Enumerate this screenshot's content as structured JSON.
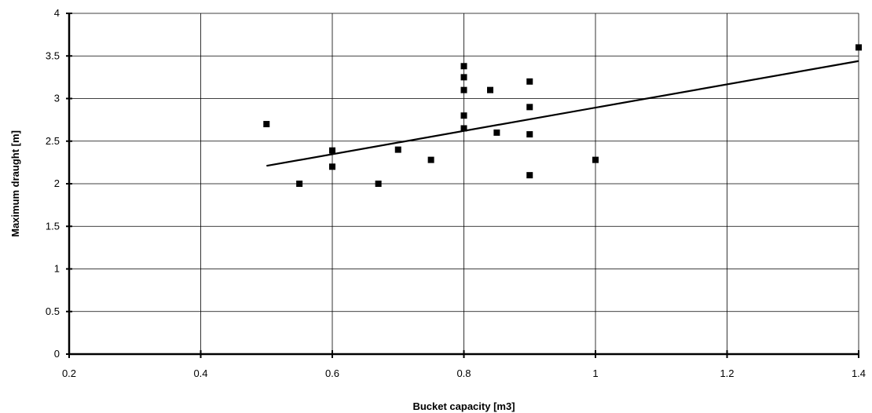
{
  "chart_data": {
    "type": "scatter",
    "title": "",
    "xlabel": "Bucket capacity [m3]",
    "ylabel": "Maximum draught [m]",
    "xlim": [
      0.2,
      1.4
    ],
    "ylim": [
      0,
      4
    ],
    "xticks": [
      0.2,
      0.4,
      0.6,
      0.8,
      1,
      1.2,
      1.4
    ],
    "yticks": [
      0,
      0.5,
      1,
      1.5,
      2,
      2.5,
      3,
      3.5,
      4
    ],
    "grid": true,
    "legend": "none",
    "marker_color": "#000000",
    "series": [
      {
        "marker": "square",
        "points": [
          {
            "x": 0.5,
            "y": 2.7
          },
          {
            "x": 0.55,
            "y": 2.0
          },
          {
            "x": 0.6,
            "y": 2.39
          },
          {
            "x": 0.6,
            "y": 2.2
          },
          {
            "x": 0.67,
            "y": 2.0
          },
          {
            "x": 0.7,
            "y": 2.4
          },
          {
            "x": 0.75,
            "y": 2.28
          },
          {
            "x": 0.8,
            "y": 3.38
          },
          {
            "x": 0.8,
            "y": 3.25
          },
          {
            "x": 0.8,
            "y": 3.1
          },
          {
            "x": 0.8,
            "y": 2.8
          },
          {
            "x": 0.8,
            "y": 2.65
          },
          {
            "x": 0.84,
            "y": 3.1
          },
          {
            "x": 0.85,
            "y": 2.6
          },
          {
            "x": 0.9,
            "y": 3.2
          },
          {
            "x": 0.9,
            "y": 2.9
          },
          {
            "x": 0.9,
            "y": 2.58
          },
          {
            "x": 0.9,
            "y": 2.1
          },
          {
            "x": 1.0,
            "y": 2.28
          },
          {
            "x": 1.4,
            "y": 3.6
          }
        ]
      }
    ],
    "trendline": {
      "type": "linear",
      "from": {
        "x": 0.5,
        "y": 2.21
      },
      "to": {
        "x": 1.4,
        "y": 3.44
      }
    }
  }
}
